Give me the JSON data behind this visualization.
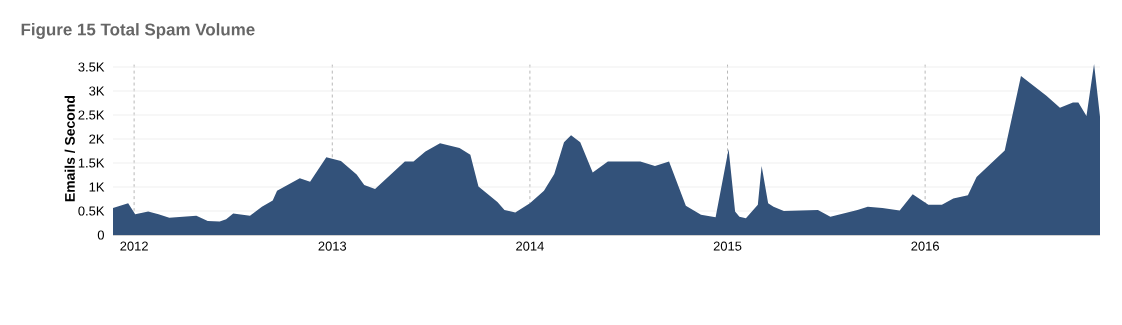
{
  "chart_data": {
    "type": "area",
    "title": "Figure 15   Total Spam Volume",
    "ylabel": "Emails / Second",
    "x": [
      "2011-11-23",
      "2011-12-21",
      "2012-01-03",
      "2012-01-27",
      "2012-02-15",
      "2012-03-06",
      "2012-04-25",
      "2012-05-16",
      "2012-06-07",
      "2012-06-19",
      "2012-07-02",
      "2012-08-02",
      "2012-08-24",
      "2012-09-13",
      "2012-09-21",
      "2012-11-02",
      "2012-11-21",
      "2012-12-21",
      "2013-01-17",
      "2013-02-15",
      "2013-03-01",
      "2013-03-21",
      "2013-05-15",
      "2013-05-31",
      "2013-06-22",
      "2013-07-19",
      "2013-08-24",
      "2013-09-13",
      "2013-09-28",
      "2013-11-02",
      "2013-11-15",
      "2013-12-05",
      "2014-01-01",
      "2014-01-27",
      "2014-02-15",
      "2014-03-05",
      "2014-03-18",
      "2014-04-04",
      "2014-04-27",
      "2014-05-25",
      "2014-07-24",
      "2014-08-20",
      "2014-09-15",
      "2014-10-16",
      "2014-11-13",
      "2014-12-10",
      "2015-01-03",
      "2015-01-15",
      "2015-01-23",
      "2015-02-04",
      "2015-02-26",
      "2015-03-05",
      "2015-03-17",
      "2015-03-27",
      "2015-04-15",
      "2015-06-17",
      "2015-07-10",
      "2015-08-29",
      "2015-09-17",
      "2015-10-14",
      "2015-11-15",
      "2015-12-09",
      "2016-01-07",
      "2016-02-01",
      "2016-02-22",
      "2016-03-20",
      "2016-04-05",
      "2016-05-27",
      "2016-06-26",
      "2016-08-12",
      "2016-09-06",
      "2016-09-30",
      "2016-10-10",
      "2016-10-25",
      "2016-11-08",
      "2016-11-19"
    ],
    "values": [
      560,
      660,
      430,
      490,
      430,
      360,
      400,
      290,
      280,
      330,
      450,
      400,
      590,
      720,
      920,
      1180,
      1110,
      1620,
      1540,
      1260,
      1040,
      960,
      1530,
      1530,
      1740,
      1910,
      1810,
      1670,
      1010,
      690,
      520,
      470,
      660,
      920,
      1270,
      1930,
      2080,
      1930,
      1300,
      1530,
      1530,
      1440,
      1530,
      610,
      420,
      370,
      1790,
      490,
      380,
      350,
      630,
      1440,
      660,
      590,
      500,
      520,
      380,
      520,
      590,
      560,
      510,
      850,
      630,
      630,
      760,
      830,
      1210,
      1760,
      3310,
      2900,
      2650,
      2760,
      2760,
      2480,
      3560,
      2460
    ],
    "color": "#33527a",
    "xlim": [
      "2011-11-23",
      "2016-11-19"
    ],
    "ylim": [
      0,
      3600
    ],
    "xticks": [
      {
        "value": "2012-01-01",
        "label": "2012"
      },
      {
        "value": "2013-01-01",
        "label": "2013"
      },
      {
        "value": "2014-01-01",
        "label": "2014"
      },
      {
        "value": "2015-01-01",
        "label": "2015"
      },
      {
        "value": "2016-01-01",
        "label": "2016"
      }
    ],
    "yticks": [
      {
        "value": 0,
        "label": "0"
      },
      {
        "value": 500,
        "label": "0.5K"
      },
      {
        "value": 1000,
        "label": "1K"
      },
      {
        "value": 1500,
        "label": "1.5K"
      },
      {
        "value": 2000,
        "label": "2K"
      },
      {
        "value": 2500,
        "label": "2.5K"
      },
      {
        "value": 3000,
        "label": "3K"
      },
      {
        "value": 3500,
        "label": "3.5K"
      }
    ],
    "grid": true
  }
}
